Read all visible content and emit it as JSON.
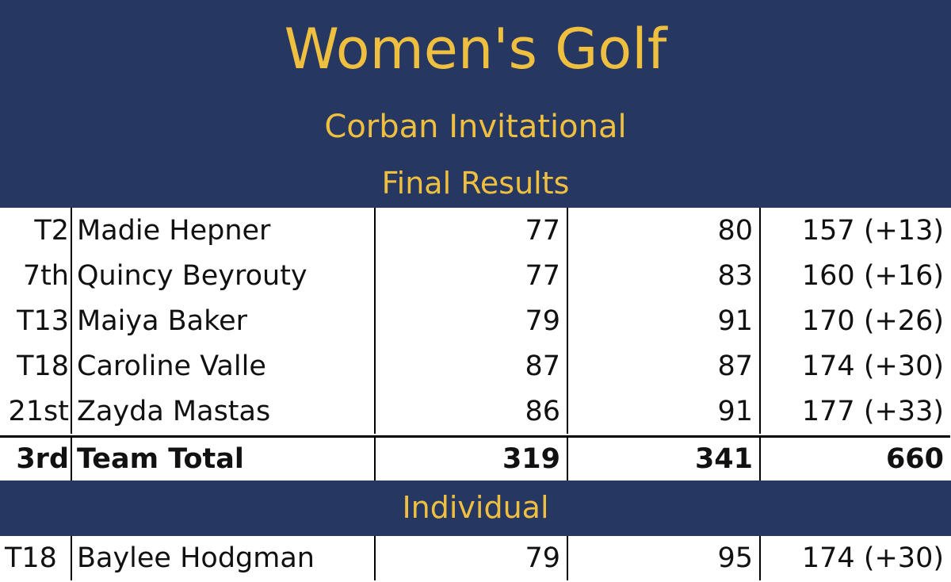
{
  "header": {
    "title": "Women's Golf",
    "event": "Corban Invitational",
    "subtitle": "Final Results"
  },
  "players": [
    {
      "pos": "T2",
      "name": "Madie Hepner",
      "r1": "77",
      "r2": "80",
      "total": "157 (+13)"
    },
    {
      "pos": "7th",
      "name": "Quincy Beyrouty",
      "r1": "77",
      "r2": "83",
      "total": "160 (+16)"
    },
    {
      "pos": "T13",
      "name": "Maiya Baker",
      "r1": "79",
      "r2": "91",
      "total": "170 (+26)"
    },
    {
      "pos": "T18",
      "name": "Caroline Valle",
      "r1": "87",
      "r2": "87",
      "total": "174 (+30)"
    },
    {
      "pos": "21st",
      "name": "Zayda Mastas",
      "r1": "86",
      "r2": "91",
      "total": "177 (+33)"
    }
  ],
  "team": {
    "pos": "3rd",
    "label": "Team Total",
    "r1": "319",
    "r2": "341",
    "total": "660"
  },
  "individual_section": "Individual",
  "individuals": [
    {
      "pos": "T18",
      "name": "Baylee Hodgman",
      "r1": "79",
      "r2": "95",
      "total": "174 (+30)"
    }
  ],
  "colors": {
    "banner": "#263762",
    "gold": "#efc03f"
  }
}
